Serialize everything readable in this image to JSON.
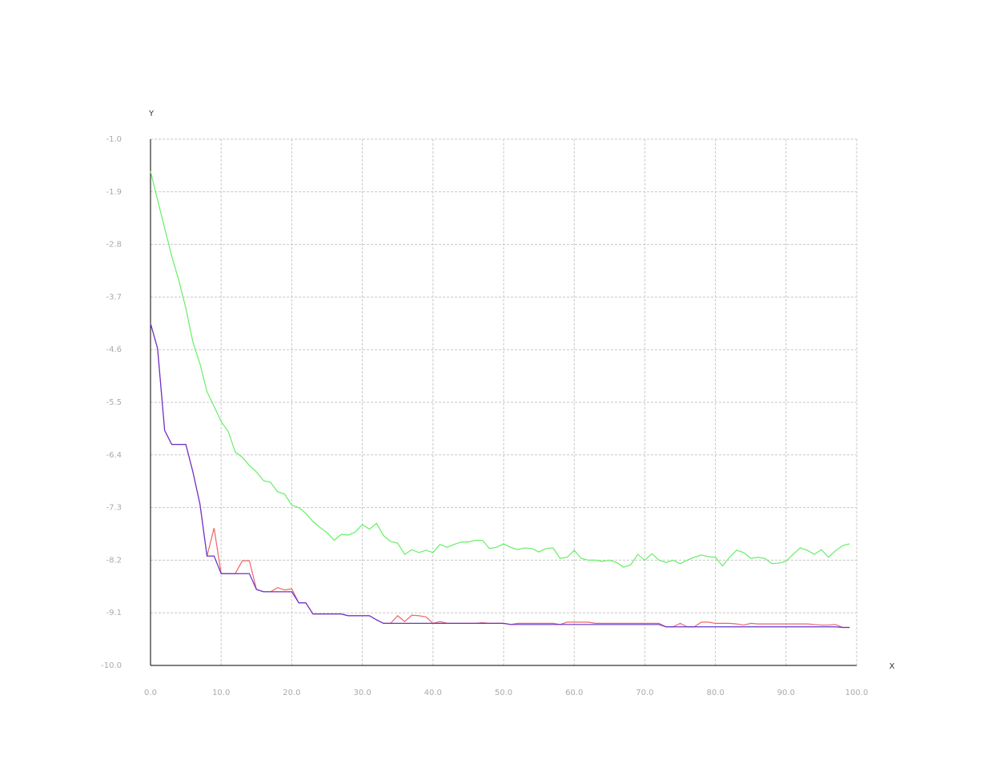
{
  "chart_data": {
    "type": "line",
    "xlabel": "X",
    "ylabel": "Y",
    "x": [
      0,
      1,
      2,
      3,
      4,
      5,
      6,
      7,
      8,
      9,
      10,
      11,
      12,
      13,
      14,
      15,
      16,
      17,
      18,
      19,
      20,
      21,
      22,
      23,
      24,
      25,
      26,
      27,
      28,
      29,
      30,
      31,
      32,
      33,
      34,
      35,
      36,
      37,
      38,
      39,
      40,
      41,
      42,
      43,
      44,
      45,
      46,
      47,
      48,
      49,
      50,
      51,
      52,
      53,
      54,
      55,
      56,
      57,
      58,
      59,
      60,
      61,
      62,
      63,
      64,
      65,
      66,
      67,
      68,
      69,
      70,
      71,
      72,
      73,
      74,
      75,
      76,
      77,
      78,
      79,
      80,
      81,
      82,
      83,
      84,
      85,
      86,
      87,
      88,
      89,
      90,
      91,
      92,
      93,
      94,
      95,
      96,
      97,
      98,
      99
    ],
    "xlim": [
      0,
      100
    ],
    "ylim": [
      -10,
      -1
    ],
    "xticks": [
      {
        "value": 0,
        "label": "0.0"
      },
      {
        "value": 10,
        "label": "10.0"
      },
      {
        "value": 20,
        "label": "20.0"
      },
      {
        "value": 30,
        "label": "30.0"
      },
      {
        "value": 40,
        "label": "40.0"
      },
      {
        "value": 50,
        "label": "50.0"
      },
      {
        "value": 60,
        "label": "60.0"
      },
      {
        "value": 70,
        "label": "70.0"
      },
      {
        "value": 80,
        "label": "80.0"
      },
      {
        "value": 90,
        "label": "90.0"
      },
      {
        "value": 100,
        "label": "100.0"
      }
    ],
    "yticks": [
      {
        "value": -10,
        "label": "-10.0"
      },
      {
        "value": -9.1,
        "label": "-9.1"
      },
      {
        "value": -8.2,
        "label": "-8.2"
      },
      {
        "value": -7.3,
        "label": "-7.3"
      },
      {
        "value": -6.4,
        "label": "-6.4"
      },
      {
        "value": -5.5,
        "label": "-5.5"
      },
      {
        "value": -4.6,
        "label": "-4.6"
      },
      {
        "value": -3.7,
        "label": "-3.7"
      },
      {
        "value": -2.8,
        "label": "-2.8"
      },
      {
        "value": -1.9,
        "label": "-1.9"
      },
      {
        "value": -1,
        "label": "-1.0"
      }
    ],
    "grid": true,
    "series": [
      {
        "color": "#66ee66",
        "values": [
          -1.55,
          -2.04,
          -2.52,
          -3.0,
          -3.41,
          -3.89,
          -4.47,
          -4.84,
          -5.32,
          -5.57,
          -5.83,
          -6.0,
          -6.35,
          -6.44,
          -6.58,
          -6.69,
          -6.84,
          -6.87,
          -7.03,
          -7.07,
          -7.26,
          -7.3,
          -7.4,
          -7.54,
          -7.64,
          -7.73,
          -7.86,
          -7.76,
          -7.77,
          -7.72,
          -7.59,
          -7.67,
          -7.57,
          -7.78,
          -7.88,
          -7.91,
          -8.1,
          -8.02,
          -8.07,
          -8.03,
          -8.07,
          -7.93,
          -7.98,
          -7.93,
          -7.89,
          -7.89,
          -7.86,
          -7.86,
          -8.0,
          -7.98,
          -7.92,
          -7.98,
          -8.02,
          -7.99,
          -8.0,
          -8.06,
          -8.0,
          -7.99,
          -8.17,
          -8.15,
          -8.03,
          -8.17,
          -8.2,
          -8.2,
          -8.22,
          -8.2,
          -8.24,
          -8.32,
          -8.28,
          -8.1,
          -8.2,
          -8.09,
          -8.2,
          -8.24,
          -8.2,
          -8.26,
          -8.2,
          -8.15,
          -8.11,
          -8.14,
          -8.15,
          -8.3,
          -8.15,
          -8.03,
          -8.07,
          -8.17,
          -8.15,
          -8.17,
          -8.26,
          -8.25,
          -8.22,
          -8.1,
          -7.99,
          -8.03,
          -8.1,
          -8.02,
          -8.15,
          -8.04,
          -7.95,
          -7.92
        ]
      },
      {
        "color": "#ee6666",
        "values": [
          -4.15,
          -4.58,
          -5.98,
          -6.22,
          -6.22,
          -6.22,
          -6.69,
          -7.24,
          -8.13,
          -7.65,
          -8.43,
          -8.43,
          -8.43,
          -8.21,
          -8.21,
          -8.7,
          -8.74,
          -8.74,
          -8.67,
          -8.71,
          -8.69,
          -8.93,
          -8.93,
          -9.12,
          -9.12,
          -9.12,
          -9.12,
          -9.12,
          -9.15,
          -9.15,
          -9.15,
          -9.15,
          -9.22,
          -9.28,
          -9.28,
          -9.15,
          -9.25,
          -9.14,
          -9.15,
          -9.17,
          -9.28,
          -9.25,
          -9.28,
          -9.28,
          -9.28,
          -9.28,
          -9.28,
          -9.27,
          -9.28,
          -9.28,
          -9.28,
          -9.3,
          -9.28,
          -9.28,
          -9.28,
          -9.28,
          -9.28,
          -9.28,
          -9.3,
          -9.26,
          -9.26,
          -9.26,
          -9.26,
          -9.28,
          -9.28,
          -9.28,
          -9.28,
          -9.28,
          -9.28,
          -9.28,
          -9.28,
          -9.28,
          -9.28,
          -9.34,
          -9.34,
          -9.28,
          -9.34,
          -9.34,
          -9.26,
          -9.26,
          -9.28,
          -9.28,
          -9.28,
          -9.29,
          -9.31,
          -9.28,
          -9.29,
          -9.29,
          -9.29,
          -9.29,
          -9.29,
          -9.29,
          -9.29,
          -9.29,
          -9.3,
          -9.31,
          -9.31,
          -9.3,
          -9.35,
          -9.35
        ]
      },
      {
        "color": "#6633cc",
        "values": [
          -4.15,
          -4.58,
          -5.98,
          -6.22,
          -6.22,
          -6.22,
          -6.69,
          -7.24,
          -8.13,
          -8.13,
          -8.43,
          -8.43,
          -8.43,
          -8.43,
          -8.43,
          -8.7,
          -8.74,
          -8.74,
          -8.74,
          -8.74,
          -8.74,
          -8.93,
          -8.93,
          -9.12,
          -9.12,
          -9.12,
          -9.12,
          -9.12,
          -9.15,
          -9.15,
          -9.15,
          -9.15,
          -9.22,
          -9.28,
          -9.28,
          -9.28,
          -9.28,
          -9.28,
          -9.28,
          -9.28,
          -9.28,
          -9.28,
          -9.28,
          -9.28,
          -9.28,
          -9.28,
          -9.28,
          -9.28,
          -9.28,
          -9.28,
          -9.28,
          -9.3,
          -9.3,
          -9.3,
          -9.3,
          -9.3,
          -9.3,
          -9.3,
          -9.3,
          -9.3,
          -9.3,
          -9.3,
          -9.3,
          -9.3,
          -9.3,
          -9.3,
          -9.3,
          -9.3,
          -9.3,
          -9.3,
          -9.3,
          -9.3,
          -9.3,
          -9.34,
          -9.34,
          -9.34,
          -9.34,
          -9.34,
          -9.34,
          -9.34,
          -9.34,
          -9.34,
          -9.34,
          -9.34,
          -9.34,
          -9.34,
          -9.34,
          -9.34,
          -9.34,
          -9.34,
          -9.34,
          -9.34,
          -9.34,
          -9.34,
          -9.34,
          -9.34,
          -9.34,
          -9.34,
          -9.35,
          -9.35
        ]
      }
    ]
  }
}
